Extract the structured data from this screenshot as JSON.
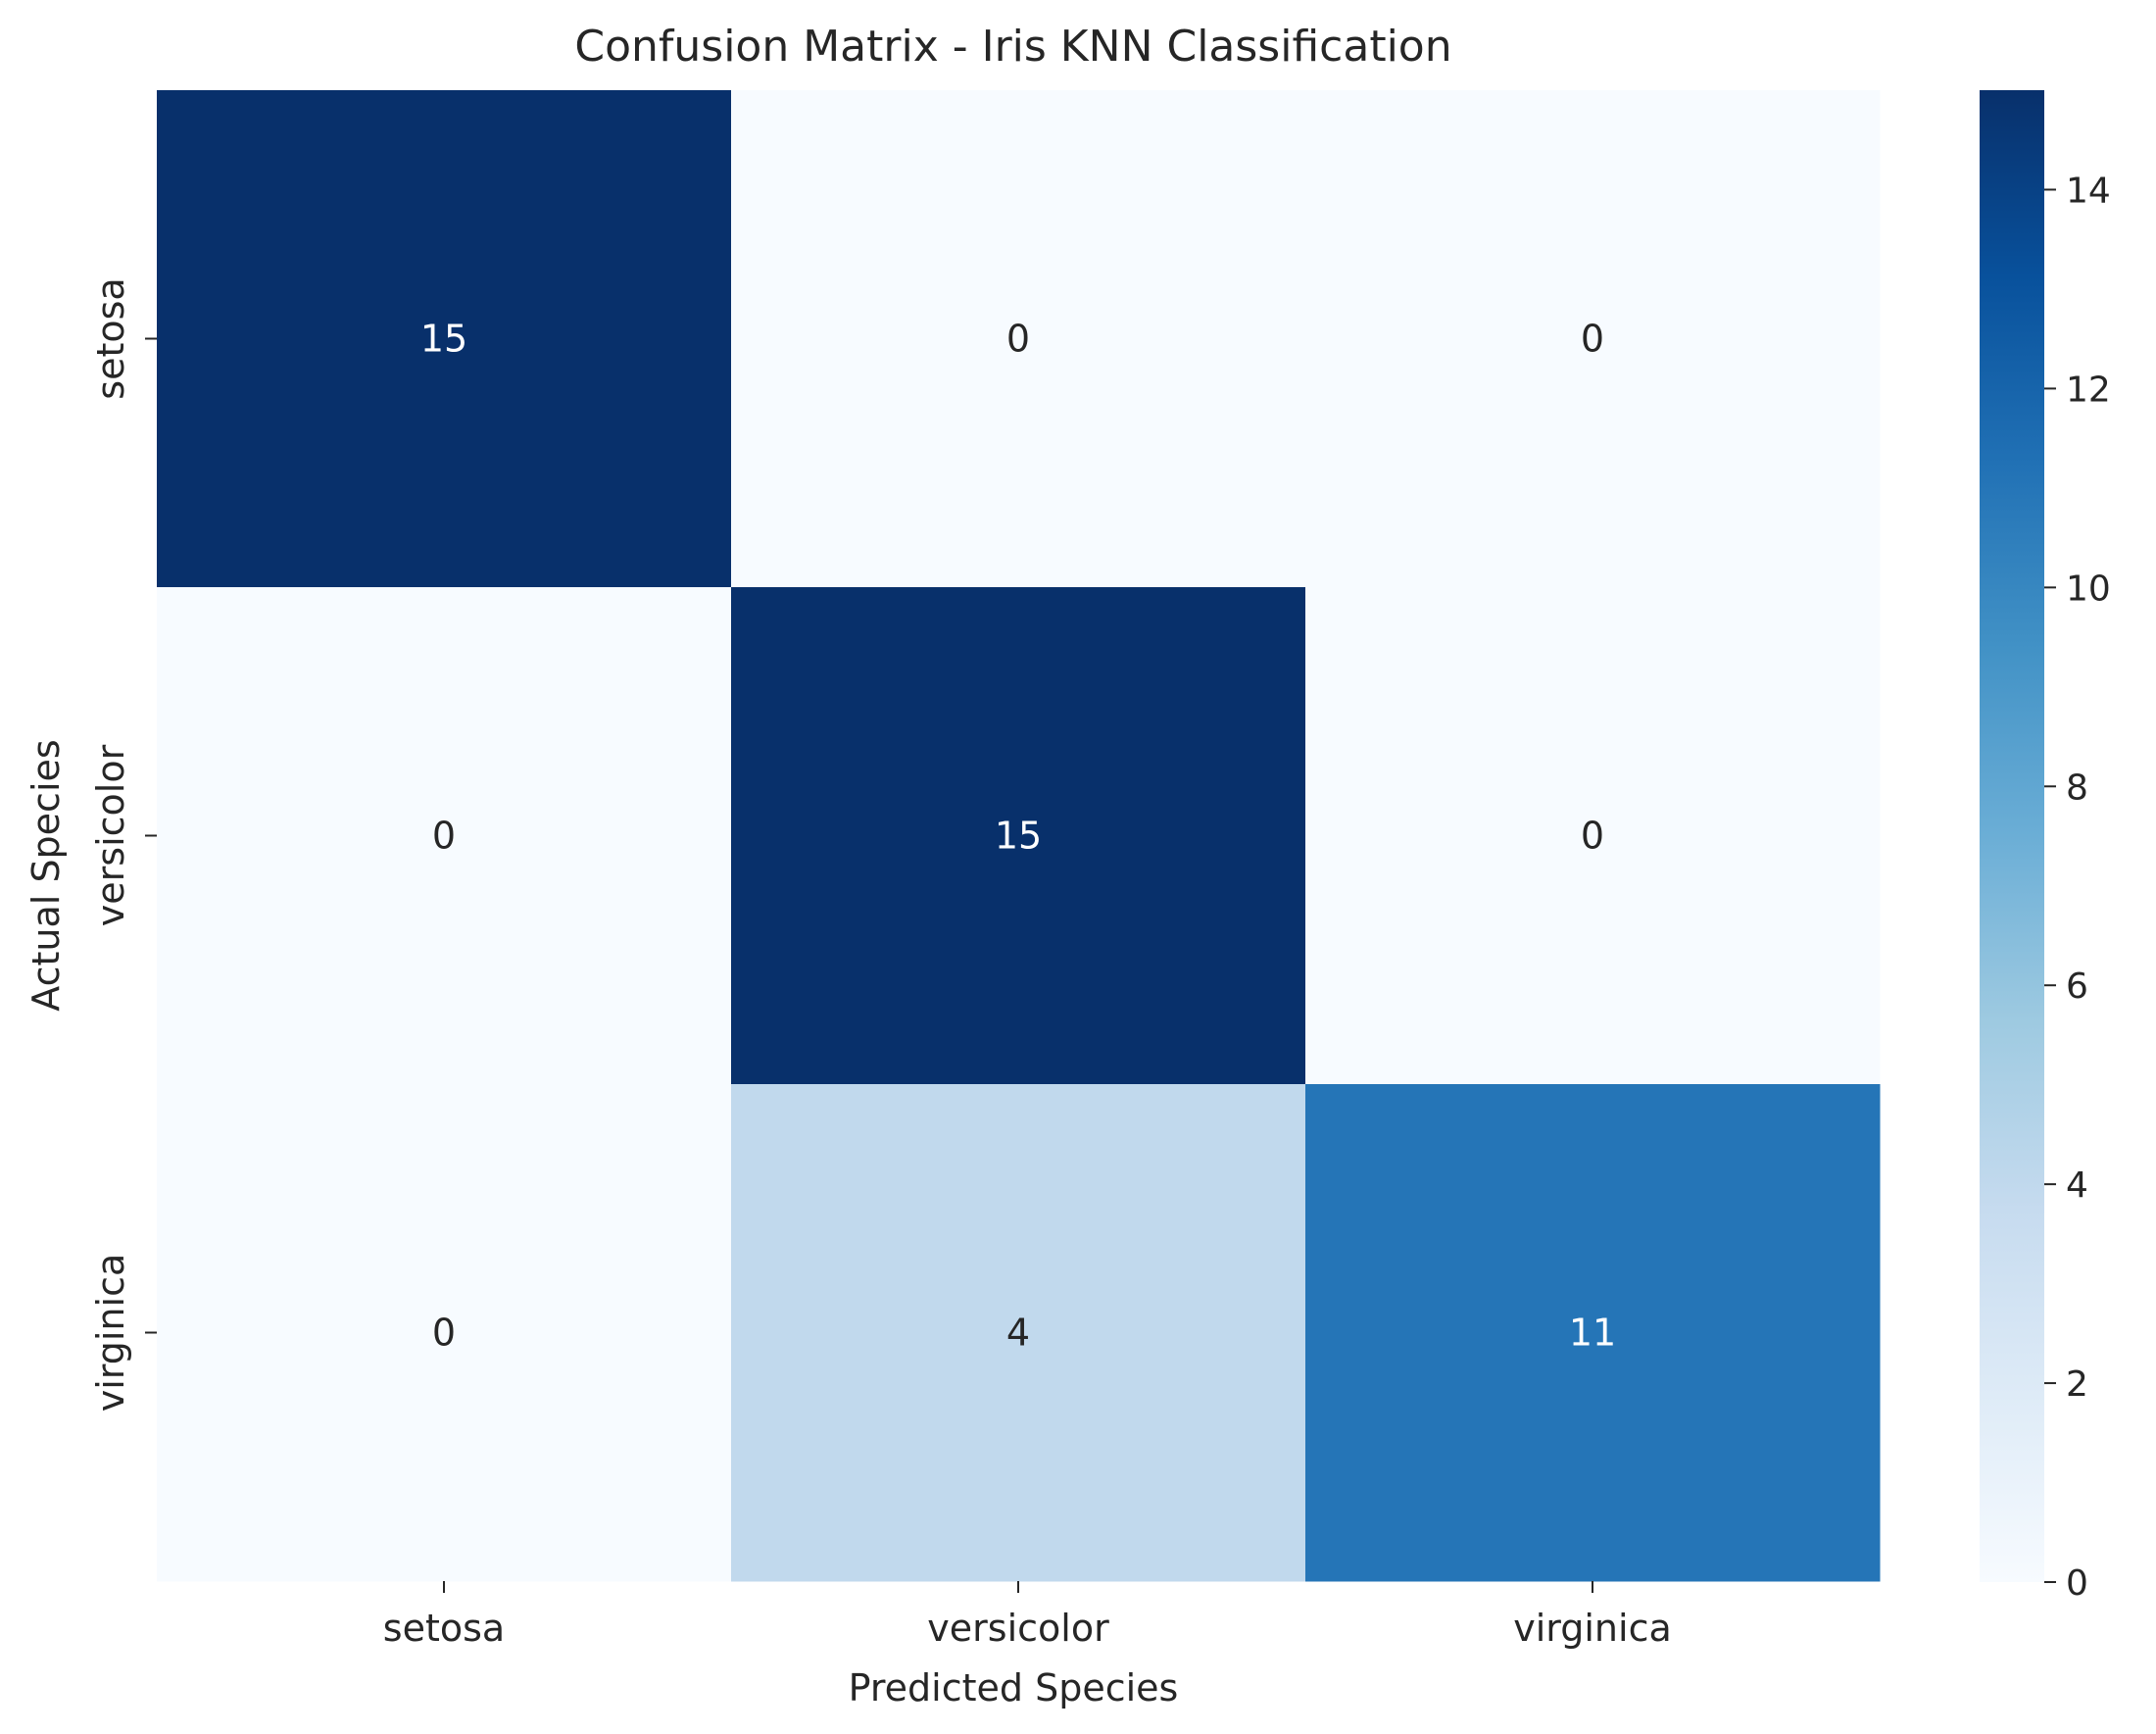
{
  "chart_data": {
    "type": "heatmap",
    "title": "Confusion Matrix - Iris KNN Classification",
    "xlabel": "Predicted Species",
    "ylabel": "Actual Species",
    "x_categories": [
      "setosa",
      "versicolor",
      "virginica"
    ],
    "y_categories": [
      "setosa",
      "versicolor",
      "virginica"
    ],
    "values": [
      [
        15,
        0,
        0
      ],
      [
        0,
        15,
        0
      ],
      [
        0,
        4,
        11
      ]
    ],
    "annotated": true,
    "colormap": "Blues",
    "colorbar": {
      "range": [
        0,
        15
      ],
      "ticks": [
        "0",
        "2",
        "4",
        "6",
        "8",
        "10",
        "12",
        "14"
      ]
    },
    "colors": {
      "min": "#f7fbff",
      "max": "#08306b",
      "light_text": "#ffffff",
      "dark_text": "#262626"
    }
  }
}
